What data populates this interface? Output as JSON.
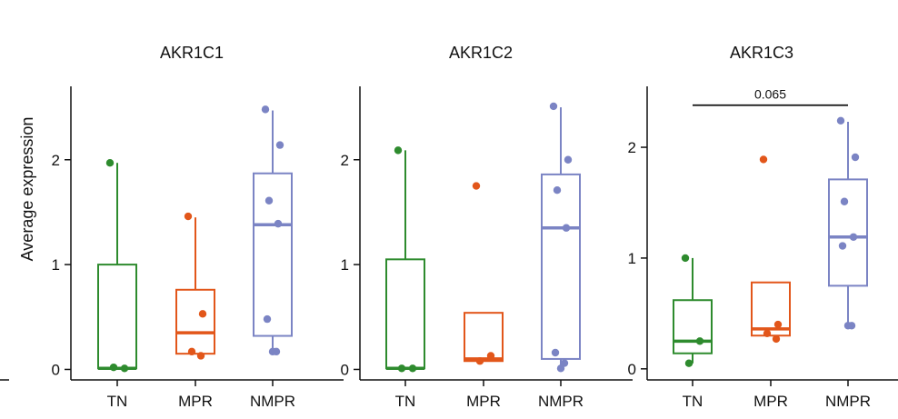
{
  "ylabel": "Average expression",
  "colors": {
    "TN": "#2e8b2e",
    "MPR": "#e2561a",
    "NMPR": "#7b84c4"
  },
  "chart_data": [
    {
      "type": "box",
      "title": "AKR1C1",
      "categories": [
        "TN",
        "MPR",
        "NMPR"
      ],
      "ylim": [
        -0.1,
        2.7
      ],
      "yticks": [
        0,
        1,
        2
      ],
      "boxes": [
        {
          "category": "TN",
          "whislo": 0.01,
          "q1": 0.01,
          "med": 0.01,
          "q3": 1.0,
          "whishi": 1.97,
          "points": [
            1.97,
            0.01,
            0.02
          ]
        },
        {
          "category": "MPR",
          "whislo": 0.15,
          "q1": 0.15,
          "med": 0.35,
          "q3": 0.76,
          "whishi": 1.45,
          "points": [
            1.46,
            0.53,
            0.17,
            0.13
          ]
        },
        {
          "category": "NMPR",
          "whislo": 0.15,
          "q1": 0.32,
          "med": 1.38,
          "q3": 1.87,
          "whishi": 2.47,
          "points": [
            2.48,
            2.14,
            1.61,
            1.39,
            0.48,
            0.17,
            0.17
          ]
        }
      ]
    },
    {
      "type": "box",
      "title": "AKR1C2",
      "categories": [
        "TN",
        "MPR",
        "NMPR"
      ],
      "ylim": [
        -0.1,
        2.7
      ],
      "yticks": [
        0,
        1,
        2
      ],
      "boxes": [
        {
          "category": "TN",
          "whislo": 0.01,
          "q1": 0.01,
          "med": 0.01,
          "q3": 1.05,
          "whishi": 2.09,
          "points": [
            2.09,
            0.01,
            0.01
          ]
        },
        {
          "category": "MPR",
          "whislo": 0.08,
          "q1": 0.08,
          "med": 0.1,
          "q3": 0.54,
          "whishi": 0.54,
          "points": [
            1.75,
            0.13,
            0.08
          ]
        },
        {
          "category": "NMPR",
          "whislo": 0.01,
          "q1": 0.1,
          "med": 1.35,
          "q3": 1.86,
          "whishi": 2.5,
          "points": [
            2.51,
            2.0,
            1.71,
            1.35,
            0.16,
            0.06,
            0.01
          ]
        }
      ]
    },
    {
      "type": "box",
      "title": "AKR1C3",
      "categories": [
        "TN",
        "MPR",
        "NMPR"
      ],
      "ylim": [
        -0.1,
        2.55
      ],
      "yticks": [
        0,
        1,
        2
      ],
      "annotation": {
        "text": "0.065",
        "from": "TN",
        "to": "NMPR",
        "y": 2.38
      },
      "boxes": [
        {
          "category": "TN",
          "whislo": 0.05,
          "q1": 0.14,
          "med": 0.25,
          "q3": 0.62,
          "whishi": 1.0,
          "points": [
            1.0,
            0.25,
            0.05
          ]
        },
        {
          "category": "MPR",
          "whislo": 0.3,
          "q1": 0.3,
          "med": 0.36,
          "q3": 0.78,
          "whishi": 0.78,
          "points": [
            1.89,
            0.4,
            0.32,
            0.27
          ]
        },
        {
          "category": "NMPR",
          "whislo": 0.39,
          "q1": 0.75,
          "med": 1.19,
          "q3": 1.71,
          "whishi": 2.23,
          "points": [
            2.24,
            1.91,
            1.51,
            1.19,
            1.11,
            0.39,
            0.39
          ]
        }
      ]
    }
  ]
}
